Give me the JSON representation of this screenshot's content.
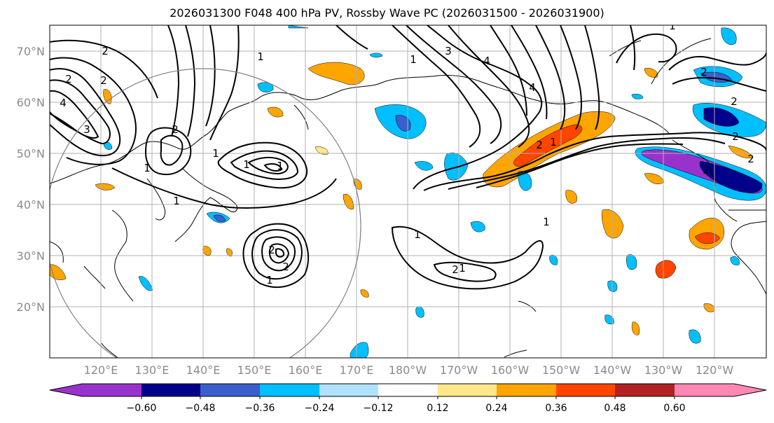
{
  "title": "2026031300 F048 400 hPa PV, Rossby Wave PC (2026031500 - 2026031900)",
  "map": {
    "lat_labels": [
      "70°N",
      "60°N",
      "50°N",
      "40°N",
      "30°N",
      "20°N"
    ],
    "lon_labels": [
      "120°E",
      "130°E",
      "140°E",
      "150°E",
      "160°E",
      "170°E",
      "180°W",
      "170°W",
      "160°W",
      "150°W",
      "140°W",
      "130°W",
      "120°W"
    ],
    "lat_range": [
      10,
      75
    ],
    "lon_range_east": [
      110,
      250
    ],
    "contour_labels": [
      "2",
      "4",
      "3",
      "2",
      "1",
      "2",
      "2",
      "1",
      "1",
      "1",
      "1",
      "2",
      "1",
      "2",
      "1",
      "1",
      "2",
      "3",
      "4",
      "2",
      "1",
      "2",
      "2",
      "4",
      "2",
      "2",
      "1",
      "2",
      "1",
      "1",
      "1"
    ]
  },
  "colorbar": {
    "ticks": [
      "−0.60",
      "−0.48",
      "−0.36",
      "−0.24",
      "−0.12",
      "0.12",
      "0.24",
      "0.36",
      "0.48",
      "0.60"
    ],
    "colors": [
      "#9932cc",
      "#00008b",
      "#3a5fcd",
      "#00bfff",
      "#b0e2ff",
      "#ffffff",
      "#ffe78a",
      "#ffa500",
      "#ff4500",
      "#b22222",
      "#ff87b4"
    ]
  }
}
